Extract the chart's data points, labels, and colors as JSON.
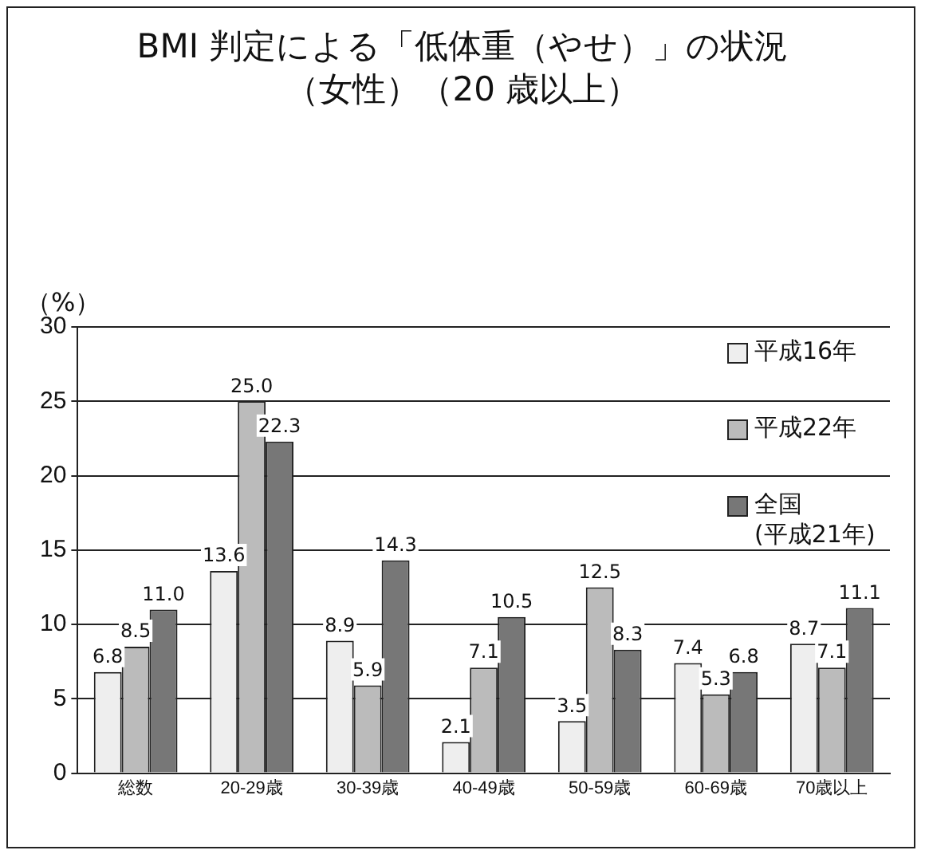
{
  "chart_data": {
    "type": "bar",
    "title": "BMI 判定による「低体重（やせ）」の状況",
    "subtitle": "（女性）（20 歳以上）",
    "ylabel": "（%）",
    "categories": [
      "総数",
      "20-29歳",
      "30-39歳",
      "40-49歳",
      "50-59歳",
      "60-69歳",
      "70歳以上"
    ],
    "series": [
      {
        "name": "平成16年",
        "color": "#eeeeee",
        "values": [
          6.8,
          13.6,
          8.9,
          2.1,
          3.5,
          7.4,
          8.7
        ],
        "value_labels": [
          "6.8",
          "13.6",
          "8.9",
          "2.1",
          "3.5",
          "7.4",
          "8.7"
        ]
      },
      {
        "name": "平成22年",
        "color": "#bbbbbb",
        "values": [
          8.5,
          25.0,
          5.9,
          7.1,
          12.5,
          5.3,
          7.1
        ],
        "value_labels": [
          "8.5",
          "25.0",
          "5.9",
          "7.1",
          "12.5",
          "5.3",
          "7.1"
        ]
      },
      {
        "name": "全国 (平成21年)",
        "color": "#777777",
        "values": [
          11.0,
          22.3,
          14.3,
          10.5,
          8.3,
          6.8,
          11.1
        ],
        "value_labels": [
          "11.0",
          "22.3",
          "14.3",
          "10.5",
          "8.3",
          "6.8",
          "11.1"
        ]
      }
    ],
    "ylim": [
      0,
      30
    ],
    "yticks": [
      0,
      5,
      10,
      15,
      20,
      25,
      30
    ],
    "grid": "y",
    "legend": "top right"
  }
}
